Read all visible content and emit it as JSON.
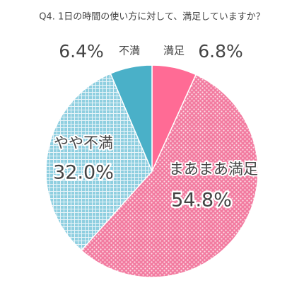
{
  "chart_data": {
    "type": "pie",
    "title": "Q4. 1日の時間の使い方に対して、満足していますか？",
    "categories": [
      "満足",
      "まあまあ満足",
      "やや不満",
      "不満"
    ],
    "values": [
      6.8,
      54.8,
      32.0,
      6.4
    ],
    "value_labels": [
      "6.8%",
      "54.8%",
      "32.0%",
      "6.4%"
    ],
    "colors": [
      "#ff6b95",
      "#f27ba0",
      "#8fcfe0",
      "#4ab0c8"
    ],
    "patterns": [
      "none",
      "dots",
      "grid",
      "none"
    ]
  }
}
